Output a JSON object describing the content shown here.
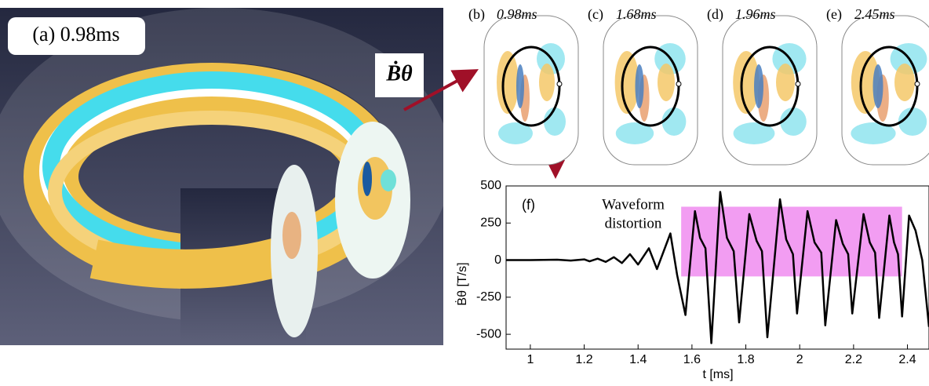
{
  "figure": {
    "panel_a": {
      "label": "(a) 0.98ms",
      "field_label": "Ḃθ"
    },
    "panels": [
      {
        "label": "(b)",
        "time": "0.98ms"
      },
      {
        "label": "(c)",
        "time": "1.68ms"
      },
      {
        "label": "(d)",
        "time": "1.96ms"
      },
      {
        "label": "(e)",
        "time": "2.45ms"
      }
    ]
  },
  "chart_data": {
    "type": "line",
    "panel_label": "(f)",
    "annotation": [
      "Waveform",
      "distortion"
    ],
    "xlabel": "t [ms]",
    "ylabel": "Ḃθ  [T/s]",
    "color": "#000000",
    "x": [
      0.91,
      1.0,
      1.1,
      1.15,
      1.2,
      1.22,
      1.25,
      1.28,
      1.31,
      1.34,
      1.37,
      1.4,
      1.44,
      1.47,
      1.52,
      1.545,
      1.576,
      1.611,
      1.63,
      1.65,
      1.672,
      1.705,
      1.73,
      1.755,
      1.775,
      1.813,
      1.84,
      1.86,
      1.88,
      1.927,
      1.95,
      1.975,
      1.99,
      2.029,
      2.055,
      2.08,
      2.095,
      2.135,
      2.16,
      2.18,
      2.195,
      2.237,
      2.26,
      2.28,
      2.295,
      2.333,
      2.35,
      2.365,
      2.38,
      2.406,
      2.43,
      2.455,
      2.48
    ],
    "values": [
      0,
      0,
      3,
      -3,
      5,
      -8,
      10,
      -12,
      20,
      -20,
      40,
      -30,
      80,
      -60,
      180,
      -100,
      -370,
      330,
      150,
      80,
      -560,
      460,
      150,
      60,
      -420,
      310,
      130,
      60,
      -520,
      410,
      140,
      40,
      -360,
      330,
      120,
      50,
      -440,
      270,
      110,
      40,
      -360,
      310,
      120,
      50,
      -390,
      300,
      120,
      40,
      -380,
      300,
      200,
      0,
      -450
    ],
    "highlight": {
      "xlim": [
        1.56,
        2.38
      ],
      "ylim": [
        -110,
        360
      ],
      "color": "#f08cf0"
    },
    "xlim": [
      0.91,
      2.48
    ],
    "ylim": [
      -600,
      500
    ],
    "xticks": [
      1,
      1.2,
      1.4,
      1.6,
      1.8,
      2,
      2.2,
      2.4
    ],
    "yticks": [
      500,
      250,
      0,
      -250,
      -500
    ]
  }
}
